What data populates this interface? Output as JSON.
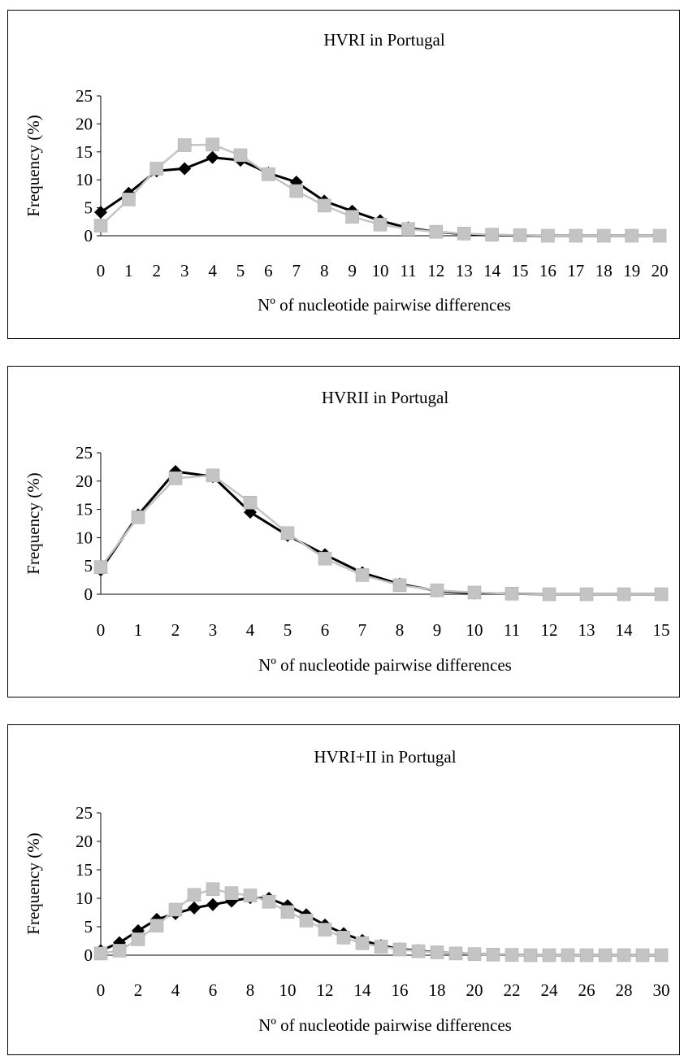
{
  "chart_data": [
    {
      "type": "line",
      "title": "HVRI in Portugal",
      "xlabel": "Nº of nucleotide pairwise differences",
      "ylabel": "Frequency (%)",
      "ylim": [
        0,
        25
      ],
      "yticks": [
        0,
        5,
        10,
        15,
        20,
        25
      ],
      "categories": [
        "0",
        "1",
        "2",
        "3",
        "4",
        "5",
        "6",
        "7",
        "8",
        "9",
        "10",
        "11",
        "12",
        "13",
        "14",
        "15",
        "16",
        "17",
        "18",
        "19",
        "20"
      ],
      "grid": false,
      "legend": "none",
      "series": [
        {
          "color": "#000000",
          "marker": "diamond",
          "values": [
            4.2,
            7.6,
            11.6,
            12.0,
            14.0,
            13.5,
            11.2,
            9.6,
            6.2,
            4.4,
            2.7,
            1.4,
            0.7,
            0.3,
            0.1,
            0.05,
            0.0,
            0.0,
            0.0,
            0.0,
            0.0
          ]
        },
        {
          "color": "#c4c4c4",
          "marker": "square",
          "values": [
            1.8,
            6.5,
            12.0,
            16.2,
            16.3,
            14.4,
            11.0,
            8.0,
            5.4,
            3.4,
            2.0,
            1.2,
            0.7,
            0.4,
            0.2,
            0.1,
            0.0,
            0.0,
            0.0,
            0.0,
            0.0
          ]
        }
      ]
    },
    {
      "type": "line",
      "title": "HVRII in Portugal",
      "xlabel": "Nº of nucleotide pairwise differences",
      "ylabel": "Frequency (%)",
      "ylim": [
        0,
        25
      ],
      "yticks": [
        0,
        5,
        10,
        15,
        20,
        25
      ],
      "categories": [
        "0",
        "1",
        "2",
        "3",
        "4",
        "5",
        "6",
        "7",
        "8",
        "9",
        "10",
        "11",
        "12",
        "13",
        "14",
        "15"
      ],
      "grid": false,
      "legend": "none",
      "series": [
        {
          "color": "#000000",
          "marker": "diamond",
          "values": [
            4.3,
            14.0,
            21.7,
            20.8,
            14.5,
            10.4,
            7.0,
            3.8,
            1.8,
            0.6,
            0.2,
            0.1,
            0.0,
            0.0,
            0.0,
            0.0
          ]
        },
        {
          "color": "#c4c4c4",
          "marker": "square",
          "values": [
            4.8,
            13.6,
            20.5,
            21.0,
            16.2,
            10.8,
            6.3,
            3.4,
            1.6,
            0.7,
            0.3,
            0.1,
            0.0,
            0.0,
            0.0,
            0.0
          ]
        }
      ]
    },
    {
      "type": "line",
      "title": "HVRI+II in Portugal",
      "xlabel": "Nº of nucleotide pairwise differences",
      "ylabel": "Frequency (%)",
      "ylim": [
        0,
        25
      ],
      "yticks": [
        0,
        5,
        10,
        15,
        20,
        25
      ],
      "categories": [
        "0",
        "1",
        "2",
        "3",
        "4",
        "5",
        "6",
        "7",
        "8",
        "9",
        "10",
        "11",
        "12",
        "13",
        "14",
        "15",
        "16",
        "17",
        "18",
        "19",
        "20",
        "21",
        "22",
        "23",
        "24",
        "25",
        "26",
        "27",
        "28",
        "29",
        "30"
      ],
      "tick_labels_x": [
        "0",
        "2",
        "4",
        "6",
        "8",
        "10",
        "12",
        "14",
        "16",
        "18",
        "20",
        "22",
        "24",
        "26",
        "28",
        "30"
      ],
      "grid": false,
      "legend": "none",
      "series": [
        {
          "color": "#000000",
          "marker": "diamond",
          "values": [
            0.8,
            2.2,
            4.3,
            6.3,
            7.3,
            8.3,
            8.9,
            9.5,
            10.1,
            10.0,
            8.7,
            7.1,
            5.3,
            3.8,
            2.6,
            1.7,
            1.1,
            0.8,
            0.5,
            0.3,
            0.2,
            0.1,
            0.05,
            0.0,
            0.0,
            0.0,
            0.0,
            0.0,
            0.0,
            0.0,
            0.0
          ]
        },
        {
          "color": "#c4c4c4",
          "marker": "square",
          "values": [
            0.3,
            0.8,
            2.8,
            5.2,
            8.0,
            10.6,
            11.6,
            10.9,
            10.5,
            9.4,
            7.6,
            6.1,
            4.5,
            3.1,
            2.1,
            1.5,
            1.0,
            0.7,
            0.5,
            0.3,
            0.2,
            0.1,
            0.05,
            0.0,
            0.0,
            0.0,
            0.0,
            0.0,
            0.0,
            0.0,
            0.0
          ]
        }
      ]
    }
  ]
}
